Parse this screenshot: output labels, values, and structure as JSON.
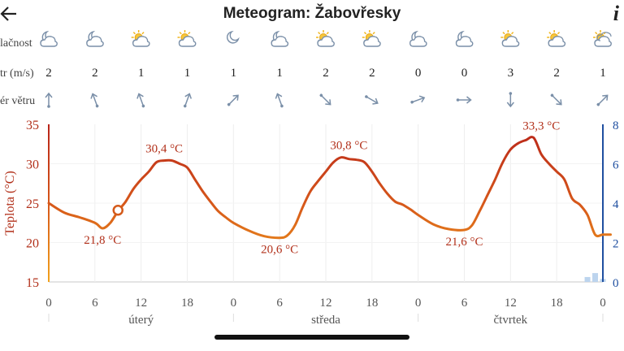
{
  "header": {
    "back_icon": "arrow-left-icon",
    "title": "Meteogram: Žabovřesky",
    "info_icon": "i"
  },
  "rows": {
    "cloud_label": "lačnost",
    "wind_label": "tr (m/s)",
    "dir_label": "ér větru",
    "cloud_icons": [
      "moon-cloud",
      "moon-cloud",
      "sun-cloud",
      "sun-cloud",
      "moon",
      "moon-cloud",
      "sun-cloud",
      "sun-cloud",
      "moon-cloud",
      "moon-cloud",
      "sun-cloud",
      "sun-cloud",
      "cloud-sun-rain"
    ],
    "wind_speeds": [
      "2",
      "2",
      "1",
      "1",
      "1",
      "1",
      "2",
      "2",
      "0",
      "0",
      "3",
      "2",
      "1"
    ],
    "wind_dirs": [
      180,
      160,
      160,
      200,
      225,
      160,
      315,
      300,
      250,
      270,
      0,
      315,
      225
    ]
  },
  "chart_data": {
    "type": "line",
    "ylabel": "Teplota (°C)",
    "ylim": [
      15,
      35
    ],
    "yticks": [
      "15",
      "20",
      "25",
      "30",
      "35"
    ],
    "right_ylim": [
      0,
      8
    ],
    "right_yticks": [
      "0",
      "2",
      "4",
      "6",
      "8"
    ],
    "xticks": [
      "0",
      "6",
      "12",
      "18",
      "0",
      "6",
      "12",
      "18",
      "0",
      "6",
      "12",
      "18",
      "0"
    ],
    "days": [
      "úterý",
      "středa",
      "čtvrtek"
    ],
    "series": [
      {
        "name": "",
        "x": [
          0,
          2,
          4,
          6,
          7,
          8,
          9,
          10,
          11,
          12,
          13,
          14,
          15,
          16,
          17,
          18,
          19,
          20,
          21,
          22,
          23,
          24,
          26,
          28,
          30,
          31,
          32,
          33,
          34,
          35,
          36,
          37,
          38,
          39,
          40,
          41,
          42,
          43,
          44,
          45,
          46,
          47,
          48,
          50,
          52,
          54,
          55,
          56,
          57,
          58,
          59,
          60,
          61,
          62,
          63,
          64,
          65,
          66,
          67,
          68,
          69,
          70,
          71,
          72,
          73
        ],
        "y": [
          25.0,
          23.8,
          23.2,
          22.5,
          21.8,
          22.5,
          24.0,
          25.2,
          26.8,
          28.0,
          29.0,
          30.2,
          30.4,
          30.4,
          30.0,
          29.5,
          28.0,
          26.5,
          25.2,
          24.0,
          23.2,
          22.5,
          21.5,
          20.8,
          20.6,
          20.9,
          22.2,
          24.5,
          26.5,
          27.8,
          29.0,
          30.2,
          30.8,
          30.6,
          30.5,
          30.2,
          29.0,
          27.5,
          26.2,
          25.2,
          24.8,
          24.2,
          23.5,
          22.3,
          21.7,
          21.6,
          22.2,
          24.0,
          26.0,
          28.0,
          30.2,
          31.8,
          32.6,
          33.0,
          33.3,
          31.2,
          30.0,
          29.0,
          28.0,
          25.6,
          24.8,
          23.5,
          21.0,
          21.0,
          21.0
        ]
      }
    ],
    "annotations": [
      {
        "x": 7,
        "y": 21.8,
        "text": "21,8 °C"
      },
      {
        "x": 15,
        "y": 30.4,
        "text": "30,4 °C"
      },
      {
        "x": 30,
        "y": 20.6,
        "text": "20,6 °C"
      },
      {
        "x": 39,
        "y": 30.8,
        "text": "30,8 °C"
      },
      {
        "x": 54,
        "y": 21.6,
        "text": "21,6 °C"
      },
      {
        "x": 64,
        "y": 33.3,
        "text": "33,3 °C"
      }
    ],
    "current_marker": {
      "x": 9,
      "y": 24.1
    },
    "precipitation": [
      {
        "x": 70,
        "value": 0.25
      },
      {
        "x": 71,
        "value": 0.45
      },
      {
        "x": 72,
        "value": 0.15
      }
    ]
  }
}
